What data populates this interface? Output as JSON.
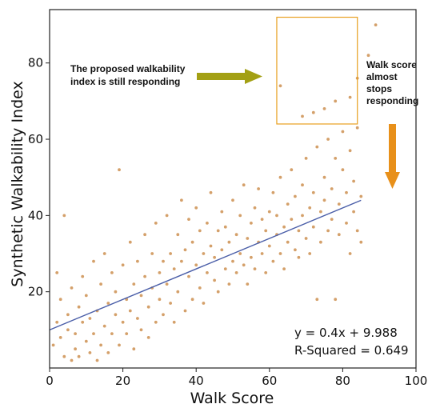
{
  "chart_data": {
    "type": "scatter",
    "title": "",
    "xlabel": "Walk Score",
    "ylabel": "Synthetic Walkability Index",
    "xlim": [
      0,
      100
    ],
    "ylim": [
      0,
      94
    ],
    "xticks": [
      "0",
      "20",
      "40",
      "60",
      "80",
      "100"
    ],
    "yticks": [
      "20",
      "40",
      "60",
      "80"
    ],
    "grid": false,
    "colors": {
      "points": "#d4a06a",
      "fit_line": "#4a5ea8",
      "arrow_right": "#a3a014",
      "arrow_down": "#e8901a",
      "box": "#e8a020"
    },
    "fit_line": {
      "slope": 0.4,
      "intercept": 9.988,
      "x_range": [
        0,
        85
      ]
    },
    "equation_text": "y = 0.4x + 9.988",
    "r_squared_text": "R-Squared = 0.649",
    "annotations": {
      "left_text_line1": "The proposed walkability",
      "left_text_line2": "index is still responding",
      "right_text_line1": "Walk score",
      "right_text_line2": "almost",
      "right_text_line3": "stops",
      "right_text_line4": "responding"
    },
    "highlight_box": {
      "x_range": [
        62,
        84
      ],
      "y_range": [
        64,
        92
      ]
    },
    "points": [
      [
        1,
        6
      ],
      [
        2,
        12
      ],
      [
        2,
        25
      ],
      [
        3,
        8
      ],
      [
        3,
        18
      ],
      [
        4,
        3
      ],
      [
        4,
        40
      ],
      [
        5,
        10
      ],
      [
        5,
        14
      ],
      [
        6,
        2
      ],
      [
        6,
        21
      ],
      [
        7,
        9
      ],
      [
        7,
        5
      ],
      [
        8,
        16
      ],
      [
        8,
        3
      ],
      [
        9,
        12
      ],
      [
        9,
        24
      ],
      [
        10,
        7
      ],
      [
        10,
        19
      ],
      [
        11,
        4
      ],
      [
        11,
        13
      ],
      [
        12,
        28
      ],
      [
        12,
        9
      ],
      [
        13,
        15
      ],
      [
        13,
        2
      ],
      [
        14,
        22
      ],
      [
        14,
        6
      ],
      [
        15,
        11
      ],
      [
        15,
        30
      ],
      [
        16,
        17
      ],
      [
        16,
        4
      ],
      [
        17,
        9
      ],
      [
        17,
        25
      ],
      [
        18,
        14
      ],
      [
        18,
        20
      ],
      [
        19,
        52
      ],
      [
        19,
        6
      ],
      [
        20,
        12
      ],
      [
        20,
        27
      ],
      [
        21,
        18
      ],
      [
        21,
        9
      ],
      [
        22,
        33
      ],
      [
        22,
        15
      ],
      [
        23,
        22
      ],
      [
        23,
        5
      ],
      [
        24,
        13
      ],
      [
        24,
        28
      ],
      [
        25,
        19
      ],
      [
        25,
        10
      ],
      [
        26,
        24
      ],
      [
        26,
        35
      ],
      [
        27,
        16
      ],
      [
        27,
        8
      ],
      [
        28,
        21
      ],
      [
        28,
        30
      ],
      [
        29,
        12
      ],
      [
        29,
        38
      ],
      [
        30,
        25
      ],
      [
        30,
        18
      ],
      [
        31,
        14
      ],
      [
        31,
        28
      ],
      [
        32,
        22
      ],
      [
        32,
        40
      ],
      [
        33,
        17
      ],
      [
        33,
        30
      ],
      [
        34,
        26
      ],
      [
        34,
        12
      ],
      [
        35,
        35
      ],
      [
        35,
        20
      ],
      [
        36,
        28
      ],
      [
        36,
        44
      ],
      [
        37,
        15
      ],
      [
        37,
        31
      ],
      [
        38,
        24
      ],
      [
        38,
        39
      ],
      [
        39,
        18
      ],
      [
        39,
        33
      ],
      [
        40,
        27
      ],
      [
        40,
        42
      ],
      [
        41,
        21
      ],
      [
        41,
        36
      ],
      [
        42,
        30
      ],
      [
        42,
        17
      ],
      [
        43,
        38
      ],
      [
        43,
        25
      ],
      [
        44,
        32
      ],
      [
        44,
        46
      ],
      [
        45,
        23
      ],
      [
        45,
        29
      ],
      [
        46,
        36
      ],
      [
        46,
        20
      ],
      [
        47,
        31
      ],
      [
        47,
        41
      ],
      [
        48,
        26
      ],
      [
        48,
        37
      ],
      [
        49,
        33
      ],
      [
        49,
        22
      ],
      [
        50,
        28
      ],
      [
        50,
        44
      ],
      [
        51,
        35
      ],
      [
        51,
        25
      ],
      [
        52,
        40
      ],
      [
        52,
        30
      ],
      [
        53,
        27
      ],
      [
        53,
        48
      ],
      [
        54,
        34
      ],
      [
        54,
        22
      ],
      [
        55,
        38
      ],
      [
        55,
        29
      ],
      [
        56,
        42
      ],
      [
        56,
        26
      ],
      [
        57,
        33
      ],
      [
        57,
        47
      ],
      [
        58,
        30
      ],
      [
        58,
        39
      ],
      [
        59,
        25
      ],
      [
        59,
        36
      ],
      [
        60,
        41
      ],
      [
        60,
        32
      ],
      [
        61,
        28
      ],
      [
        61,
        46
      ],
      [
        62,
        35
      ],
      [
        62,
        40
      ],
      [
        63,
        30
      ],
      [
        63,
        50
      ],
      [
        64,
        37
      ],
      [
        64,
        26
      ],
      [
        65,
        43
      ],
      [
        65,
        33
      ],
      [
        66,
        39
      ],
      [
        66,
        52
      ],
      [
        67,
        31
      ],
      [
        67,
        45
      ],
      [
        68,
        36
      ],
      [
        68,
        29
      ],
      [
        69,
        48
      ],
      [
        69,
        40
      ],
      [
        70,
        34
      ],
      [
        70,
        55
      ],
      [
        71,
        42
      ],
      [
        71,
        30
      ],
      [
        72,
        46
      ],
      [
        72,
        37
      ],
      [
        73,
        18
      ],
      [
        73,
        58
      ],
      [
        74,
        41
      ],
      [
        74,
        33
      ],
      [
        75,
        50
      ],
      [
        75,
        44
      ],
      [
        76,
        36
      ],
      [
        76,
        60
      ],
      [
        77,
        47
      ],
      [
        77,
        39
      ],
      [
        78,
        18
      ],
      [
        78,
        55
      ],
      [
        79,
        43
      ],
      [
        79,
        35
      ],
      [
        80,
        52
      ],
      [
        80,
        62
      ],
      [
        81,
        46
      ],
      [
        81,
        38
      ],
      [
        82,
        57
      ],
      [
        82,
        30
      ],
      [
        83,
        49
      ],
      [
        83,
        41
      ],
      [
        84,
        63
      ],
      [
        84,
        36
      ],
      [
        85,
        45
      ],
      [
        85,
        33
      ],
      [
        63,
        74
      ],
      [
        69,
        66
      ],
      [
        72,
        67
      ],
      [
        75,
        68
      ],
      [
        78,
        70
      ],
      [
        82,
        71
      ],
      [
        84,
        76
      ],
      [
        87,
        82
      ],
      [
        89,
        90
      ]
    ]
  }
}
